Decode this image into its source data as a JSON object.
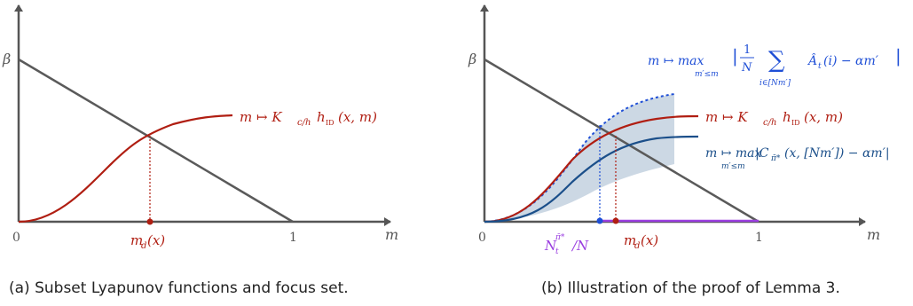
{
  "panel_a": {
    "caption": "(a) Subset Lyapunov functions and focus set.",
    "y_tick": "β",
    "x_tick_0": "0",
    "x_tick_1": "1",
    "x_axis_label": "m",
    "curve_label_main": "m ↦ K",
    "curve_label_sub": "c/h",
    "curve_label_rest": "h",
    "curve_label_sub2": "ID",
    "curve_label_args": "(x, m)",
    "point_label_main": "m",
    "point_label_sub": "d",
    "point_label_args": "(x)"
  },
  "panel_b": {
    "caption": "(b) Illustration of the proof of Lemma 3.",
    "y_tick": "β",
    "x_tick_0": "0",
    "x_tick_1": "1",
    "x_axis_label": "m",
    "upper_label_prefix": "m ↦ max",
    "upper_label_limits": "m′≤m",
    "upper_label_frac_num": "1",
    "upper_label_frac_den": "N",
    "upper_label_sum": "∑",
    "upper_label_sum_idx": "i∈[Nm′]",
    "upper_label_body": "Â",
    "upper_label_body_sub": "t",
    "upper_label_tail": "(i) − αm′",
    "mid_label_main": "m ↦ K",
    "mid_label_sub": "c/h",
    "mid_label_rest": "h",
    "mid_label_sub2": "ID",
    "mid_label_args": "(x, m)",
    "lower_label_prefix": "m ↦ max",
    "lower_label_limits": "m′≤m",
    "lower_label_body": "|C",
    "lower_label_body_sub": "π̄*",
    "lower_label_tail": "(x, [Nm′]) − αm′|",
    "n_label_main": "N",
    "n_label_sub": "t",
    "n_label_sup": "π̄*",
    "n_label_tail": "/N",
    "md_label_main": "m",
    "md_label_sub": "d",
    "md_label_args": "(x)"
  },
  "colors": {
    "axis": "#555555",
    "line": "#5a5a5a",
    "red": "#b01e12",
    "blue": "#1b4f8a",
    "dotted_blue": "#1f4fd6",
    "band": "#c9d6e3",
    "purple": "#9b3fe0"
  }
}
